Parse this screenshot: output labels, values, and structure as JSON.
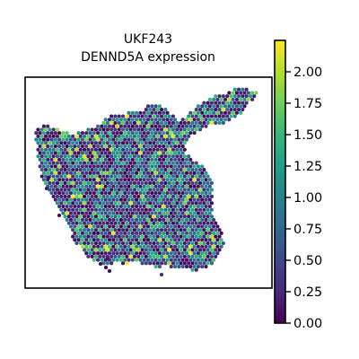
{
  "chart_data": {
    "type": "scatter",
    "subtype": "spatial-transcriptomics-spots",
    "title_line1": "UKF243",
    "title_line2": "DENND5A expression",
    "xlabel": "",
    "ylabel": "",
    "axes_ticks": "none",
    "grid": false,
    "colormap": "viridis",
    "colorbar": {
      "vmin": 0.0,
      "vmax": 2.25,
      "ticks": [
        0.0,
        0.25,
        0.5,
        0.75,
        1.0,
        1.25,
        1.5,
        1.75,
        2.0
      ],
      "tick_labels": [
        "0.00",
        "0.25",
        "0.50",
        "0.75",
        "1.00",
        "1.25",
        "1.50",
        "1.75",
        "2.00"
      ],
      "placement": "right"
    },
    "value_range": [
      0.0,
      2.25
    ]
  }
}
